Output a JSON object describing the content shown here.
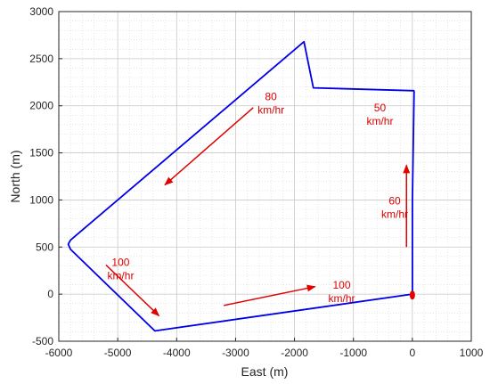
{
  "chart_data": {
    "type": "line",
    "title": "",
    "xlabel": "East (m)",
    "ylabel": "North (m)",
    "xlim": [
      -6000,
      1000
    ],
    "ylim": [
      -500,
      3000
    ],
    "x_ticks": [
      -6000,
      -5000,
      -4000,
      -3000,
      -2000,
      -1000,
      0,
      1000
    ],
    "y_ticks": [
      -500,
      0,
      500,
      1000,
      1500,
      2000,
      2500,
      3000
    ],
    "x_tick_labels": [
      "-6000",
      "-5000",
      "-4000",
      "-3000",
      "-2000",
      "-1000",
      "0",
      "1000"
    ],
    "y_tick_labels": [
      "-500",
      "0",
      "500",
      "1000",
      "1500",
      "2000",
      "2500",
      "3000"
    ],
    "grid": true,
    "minor_grid": true,
    "series": [
      {
        "color": "#0000e6",
        "x": [
          0,
          0,
          30,
          25,
          -1680,
          -1840,
          -5800,
          -5840,
          -5800,
          -4370,
          0
        ],
        "y": [
          0,
          1000,
          2150,
          2160,
          2190,
          2680,
          575,
          530,
          475,
          -390,
          0
        ]
      }
    ],
    "endpoint_marker": {
      "x": 0,
      "y": -10,
      "color": "#e00000"
    },
    "annotations": [
      {
        "lines": [
          "80",
          "km/hr"
        ],
        "text_x": -2400,
        "text_y": 2060,
        "arrow": {
          "x1": -2700,
          "y1": 1980,
          "x2": -4200,
          "y2": 1160
        },
        "color": "#e00000"
      },
      {
        "lines": [
          "50",
          "km/hr"
        ],
        "text_x": -550,
        "text_y": 1940,
        "color": "#e00000"
      },
      {
        "lines": [
          "60",
          "km/hr"
        ],
        "text_x": -300,
        "text_y": 950,
        "arrow": {
          "x1": -100,
          "y1": 500,
          "x2": -100,
          "y2": 1370
        },
        "color": "#e00000"
      },
      {
        "lines": [
          "100",
          "km/hr"
        ],
        "text_x": -4950,
        "text_y": 300,
        "arrow": {
          "x1": -5200,
          "y1": 310,
          "x2": -4300,
          "y2": -230
        },
        "color": "#e00000"
      },
      {
        "lines": [
          "100",
          "km/hr"
        ],
        "text_x": -1200,
        "text_y": 60,
        "arrow": {
          "x1": -3200,
          "y1": -120,
          "x2": -1650,
          "y2": 80
        },
        "color": "#e00000"
      }
    ]
  }
}
